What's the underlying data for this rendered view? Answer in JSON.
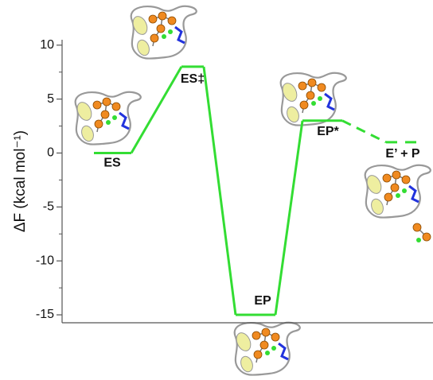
{
  "chart_data": {
    "type": "energy-profile",
    "y_label": "ΔF (kcal mol⁻¹)",
    "categories": [
      "ES",
      "ES‡",
      "EP",
      "EP*",
      "E’ + P"
    ],
    "values": [
      0,
      8,
      -15,
      3,
      1
    ],
    "color": "#33dd33",
    "ylim": [
      -16,
      10.5
    ],
    "yticks": [
      -15,
      -10,
      -5,
      0,
      5,
      10
    ],
    "minor_yticks": [
      -12.5,
      -7.5,
      -2.5,
      2.5,
      7.5
    ]
  }
}
